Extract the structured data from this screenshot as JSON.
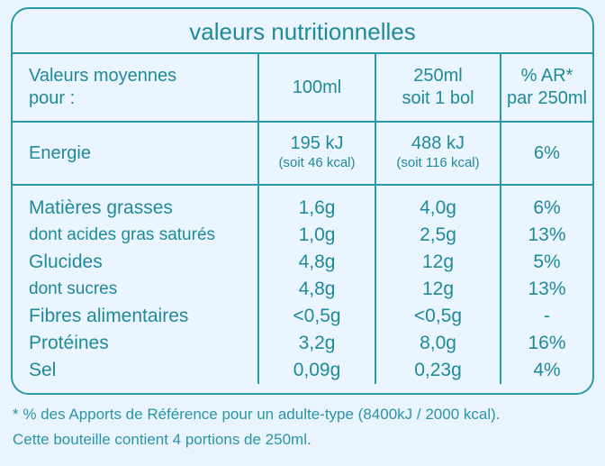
{
  "title": "valeurs nutritionnelles",
  "header": {
    "col1": "Valeurs moyennes\npour :",
    "col2": "100ml",
    "col3_line1": "250ml",
    "col3_line2": "soit 1 bol",
    "col4_line1": "% AR*",
    "col4_line2": "par 250ml"
  },
  "energy": {
    "label": "Energie",
    "per100_kj": "195 kJ",
    "per100_kcal": "(soit 46 kcal)",
    "per250_kj": "488 kJ",
    "per250_kcal": "(soit 116 kcal)",
    "ar": "6%"
  },
  "rows": [
    {
      "label": "Matières grasses",
      "per100": "1,6g",
      "per250": "4,0g",
      "ar": "6%"
    },
    {
      "label": "dont acides gras saturés",
      "per100": "1,0g",
      "per250": "2,5g",
      "ar": "13%"
    },
    {
      "label": "Glucides",
      "per100": "4,8g",
      "per250": "12g",
      "ar": "5%"
    },
    {
      "label": "dont sucres",
      "per100": "4,8g",
      "per250": "12g",
      "ar": "13%"
    },
    {
      "label": "Fibres alimentaires",
      "per100": "<0,5g",
      "per250": "<0,5g",
      "ar": "-"
    },
    {
      "label": "Protéines",
      "per100": "3,2g",
      "per250": "8,0g",
      "ar": "16%"
    },
    {
      "label": "Sel",
      "per100": "0,09g",
      "per250": "0,23g",
      "ar": "4%"
    }
  ],
  "footer": {
    "note": "* % des Apports de Référence pour un adulte-type (8400kJ / 2000 kcal).",
    "portions": "Cette bouteille contient 4 portions de 250ml."
  },
  "colors": {
    "text": "#1f8a9a",
    "border": "#2a9aa8",
    "background": "#eaf4ff"
  }
}
